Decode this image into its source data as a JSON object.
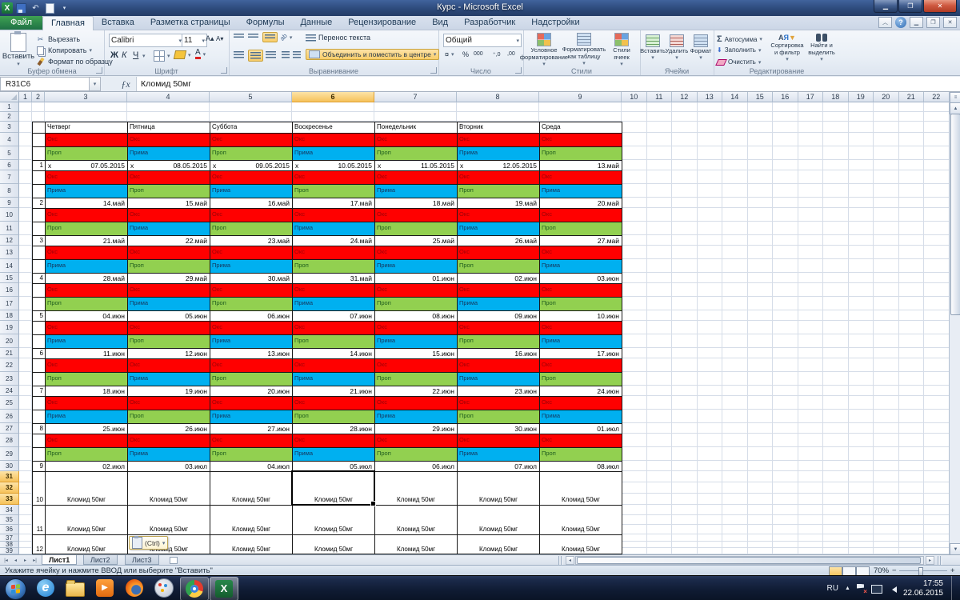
{
  "window": {
    "title": "Курс  -  Microsoft Excel"
  },
  "ribbon_tabs": [
    {
      "label": "Файл",
      "file": true
    },
    {
      "label": "Главная",
      "active": true
    },
    {
      "label": "Вставка"
    },
    {
      "label": "Разметка страницы"
    },
    {
      "label": "Формулы"
    },
    {
      "label": "Данные"
    },
    {
      "label": "Рецензирование"
    },
    {
      "label": "Вид"
    },
    {
      "label": "Разработчик"
    },
    {
      "label": "Надстройки"
    }
  ],
  "ribbon": {
    "clipboard": {
      "title": "Буфер обмена",
      "paste": "Вставить",
      "cut": "Вырезать",
      "copy": "Копировать",
      "painter": "Формат по образцу"
    },
    "font": {
      "title": "Шрифт",
      "family": "Calibri",
      "size": "11",
      "bold": "Ж",
      "italic": "К",
      "underline": "Ч"
    },
    "alignment": {
      "title": "Выравнивание",
      "wrap": "Перенос текста",
      "merge": "Объединить и поместить в центре"
    },
    "number": {
      "title": "Число",
      "format": "Общий"
    },
    "styles": {
      "title": "Стили",
      "conditional": "Условное форматирование",
      "as_table": "Форматировать как таблицу",
      "cell_styles": "Стили ячеек"
    },
    "cells": {
      "title": "Ячейки",
      "insert": "Вставить",
      "del": "Удалить",
      "format": "Формат"
    },
    "editing": {
      "title": "Редактирование",
      "autosum": "Автосумма",
      "fill": "Заполнить",
      "clear": "Очистить",
      "sort": "Сортировка и фильтр",
      "find": "Найти и выделить"
    }
  },
  "formula_bar": {
    "name_box": "R31C6",
    "value": "Кломид 50мг"
  },
  "grid": {
    "columns": 22,
    "rows": 39,
    "selected_column": 6,
    "selected_rows": [
      31,
      32,
      33
    ]
  },
  "sheet": {
    "day_headers": [
      "Четверг",
      "Пятница",
      "Суббота",
      "Воскресенье",
      "Понедельник",
      "Вторник",
      "Среда"
    ],
    "red_row_label": "Окс",
    "drug_colors": {
      "Окс": "#ff0000",
      "Проп": "#92d050",
      "Прима": "#00b0f0"
    },
    "drug_text_colors": {
      "Окс": "#9c0006",
      "Проп": "#1e5c1e",
      "Прима": "#16365c"
    },
    "weeks": [
      {
        "num": "1",
        "drugs": [
          "Проп",
          "Прима",
          "Проп",
          "Прима",
          "Проп",
          "Прима",
          "Проп"
        ],
        "dates": [
          {
            "mark": "x",
            "date": "07.05.2015"
          },
          {
            "mark": "x",
            "date": "08.05.2015"
          },
          {
            "mark": "x",
            "date": "09.05.2015"
          },
          {
            "mark": "x",
            "date": "10.05.2015"
          },
          {
            "mark": "x",
            "date": "11.05.2015"
          },
          {
            "mark": "x",
            "date": "12.05.2015"
          },
          {
            "date": "13.май"
          }
        ]
      },
      {
        "num": "2",
        "drugs": [
          "Прима",
          "Проп",
          "Прима",
          "Проп",
          "Прима",
          "Проп",
          "Прима"
        ],
        "dates": [
          "14.май",
          "15.май",
          "16.май",
          "17.май",
          "18.май",
          "19.май",
          "20.май"
        ]
      },
      {
        "num": "3",
        "drugs": [
          "Проп",
          "Прима",
          "Проп",
          "Прима",
          "Проп",
          "Прима",
          "Проп"
        ],
        "dates": [
          "21.май",
          "22.май",
          "23.май",
          "24.май",
          "25.май",
          "26.май",
          "27.май"
        ]
      },
      {
        "num": "4",
        "drugs": [
          "Прима",
          "Проп",
          "Прима",
          "Проп",
          "Прима",
          "Проп",
          "Прима"
        ],
        "dates": [
          "28.май",
          "29.май",
          "30.май",
          "31.май",
          "01.июн",
          "02.июн",
          "03.июн"
        ]
      },
      {
        "num": "5",
        "drugs": [
          "Проп",
          "Прима",
          "Проп",
          "Прима",
          "Проп",
          "Прима",
          "Проп"
        ],
        "dates": [
          "04.июн",
          "05.июн",
          "06.июн",
          "07.июн",
          "08.июн",
          "09.июн",
          "10.июн"
        ]
      },
      {
        "num": "6",
        "drugs": [
          "Прима",
          "Проп",
          "Прима",
          "Проп",
          "Прима",
          "Проп",
          "Прима"
        ],
        "dates": [
          "11.июн",
          "12.июн",
          "13.июн",
          "14.июн",
          "15.июн",
          "16.июн",
          "17.июн"
        ]
      },
      {
        "num": "7",
        "drugs": [
          "Проп",
          "Прима",
          "Проп",
          "Прима",
          "Проп",
          "Прима",
          "Проп"
        ],
        "dates": [
          "18.июн",
          "19.июн",
          "20.июн",
          "21.июн",
          "22.июн",
          "23.июн",
          "24.июн"
        ]
      },
      {
        "num": "8",
        "drugs": [
          "Прима",
          "Проп",
          "Прима",
          "Проп",
          "Прима",
          "Проп",
          "Прима"
        ],
        "dates": [
          "25.июн",
          "26.июн",
          "27.июн",
          "28.июн",
          "29.июн",
          "30.июн",
          "01.июл"
        ]
      },
      {
        "num": "9",
        "drugs": [
          "Проп",
          "Прима",
          "Проп",
          "Прима",
          "Проп",
          "Прима",
          "Проп"
        ],
        "dates": [
          "02.июл",
          "03.июл",
          "04.июл",
          "05.июл",
          "06.июл",
          "07.июл",
          "08.июл"
        ]
      }
    ],
    "pct_label": "Кломид 50мг",
    "pct_weeks": [
      {
        "num": "10"
      },
      {
        "num": "11"
      },
      {
        "num": "12"
      }
    ]
  },
  "paste_options": {
    "label": "(Ctrl)"
  },
  "sheet_tabs": {
    "list": [
      {
        "label": "Лист1",
        "active": true
      },
      {
        "label": "Лист2"
      },
      {
        "label": "Лист3"
      }
    ]
  },
  "status_bar": {
    "message": "Укажите ячейку и нажмите ВВОД или выберите \"Вставить\"",
    "zoom": "70%"
  },
  "taskbar": {
    "apps": [
      "internet-explorer",
      "windows-explorer",
      "media-player",
      "firefox",
      "paint",
      "chrome",
      "excel"
    ],
    "tray": {
      "lang": "RU",
      "time": "17:55",
      "date": "22.06.2015"
    }
  }
}
